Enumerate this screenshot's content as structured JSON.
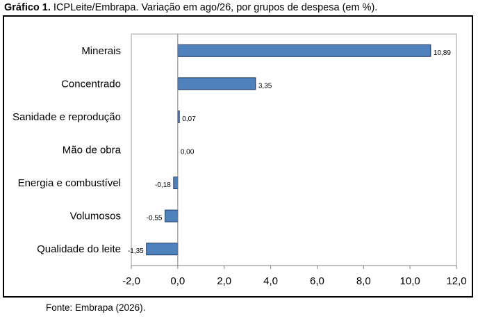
{
  "title_prefix": "Gráfico 1.",
  "title_text": "ICPLeite/Embrapa. Variação em ago/26, por grupos de despesa (em %).",
  "source": "Fonte: Embrapa (2026).",
  "chart_data": {
    "type": "bar",
    "orientation": "horizontal",
    "categories": [
      "Minerais",
      "Concentrado",
      "Sanidade e reprodução",
      "Mão de obra",
      "Energia e combustível",
      "Volumosos",
      "Qualidade do leite"
    ],
    "values": [
      10.89,
      3.35,
      0.07,
      0.0,
      -0.18,
      -0.55,
      -1.35
    ],
    "data_labels": [
      "10,89",
      "3,35",
      "0,07",
      "0,00",
      "-0,18",
      "-0,55",
      "-1,35"
    ],
    "xlim": [
      -2.0,
      12.0
    ],
    "xticks": [
      -2,
      0,
      2,
      4,
      6,
      8,
      10,
      12
    ],
    "xtick_labels": [
      "-2,0",
      "0,0",
      "2,0",
      "4,0",
      "6,0",
      "8,0",
      "10,0",
      "12,0"
    ],
    "bar_color": "#4F81BD",
    "bar_edge_color": "#1F3864",
    "grid": false
  }
}
